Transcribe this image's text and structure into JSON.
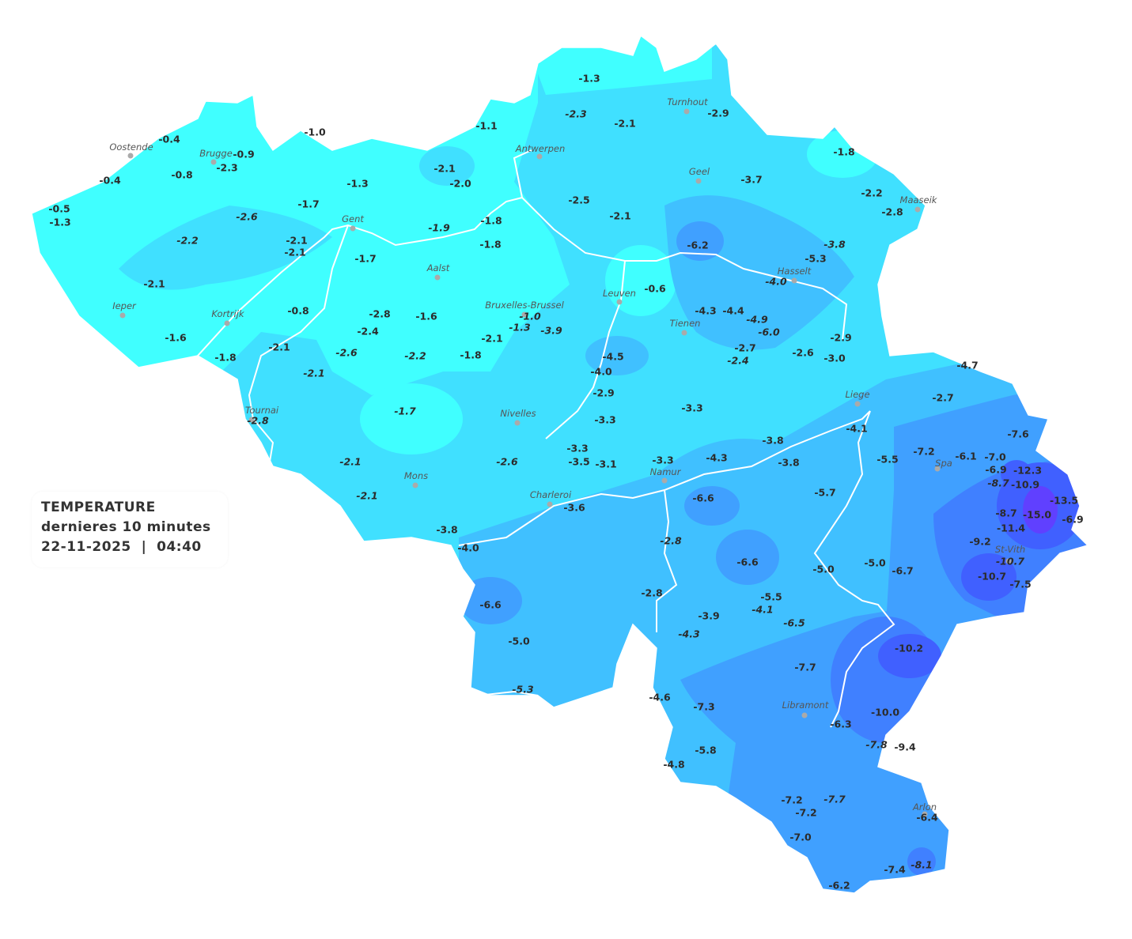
{
  "legend": {
    "title": "TEMPERATURE",
    "subtitle": "dernieres 10 minutes",
    "datetime": "22-11-2025  |  04:40"
  },
  "colors": {
    "very_light": "#40ffff",
    "light": "#40e0ff",
    "medium": "#40c0ff",
    "medium_dark": "#40a0ff",
    "dark": "#4080ff",
    "darker": "#4060ff",
    "darkest": "#6040ff",
    "boundary": "#ffffff",
    "text": "#2b2b2b"
  },
  "cities": [
    "Oostende",
    "Brugge",
    "Antwerpen",
    "Turnhout",
    "Geel",
    "Maaseik",
    "Gent",
    "Aalst",
    "Hasselt",
    "Leuven",
    "Bruxelles-Brussel",
    "Ieper",
    "Kortrijk",
    "Tienen",
    "Liege",
    "Tournai",
    "Nivelles",
    "Spa",
    "Namur",
    "Mons",
    "Charleroi",
    "St-Vith",
    "Libramont",
    "Arlon"
  ],
  "stations": [
    "-1.3",
    "-2.3",
    "-2.1",
    "-2.9",
    "-1.1",
    "-1.0",
    "-0.4",
    "-0.9",
    "-2.3",
    "-0.8",
    "-0.4",
    "-2.1",
    "-2.0",
    "-1.3",
    "-1.8",
    "-3.7",
    "-2.2",
    "-2.8",
    "-0.5",
    "-1.3",
    "-1.7",
    "-2.6",
    "-2.5",
    "-2.1",
    "-1.8",
    "-1.9",
    "-1.8",
    "-2.2",
    "-2.1",
    "-2.1",
    "-1.7",
    "-6.2",
    "-3.8",
    "-5.3",
    "-4.0",
    "-2.1",
    "-0.6",
    "-0.8",
    "-2.8",
    "-1.6",
    "-1.0",
    "-1.3",
    "-3.9",
    "-4.3",
    "-4.4",
    "-4.9",
    "-6.0",
    "-2.4",
    "-1.6",
    "-2.1",
    "-2.9",
    "-2.1",
    "-2.6",
    "-2.2",
    "-1.8",
    "-4.5",
    "-2.7",
    "-2.4",
    "-2.6",
    "-3.0",
    "-1.8",
    "-4.0",
    "-2.1",
    "-4.7",
    "-2.9",
    "-2.7",
    "-1.7",
    "-3.3",
    "-3.3",
    "-2.8",
    "-4.1",
    "-7.6",
    "-3.8",
    "-3.3",
    "-5.5",
    "-7.2",
    "-6.1",
    "-7.0",
    "-3.5",
    "-3.1",
    "-3.3",
    "-4.3",
    "-3.8",
    "-2.1",
    "-2.6",
    "-6.9",
    "-12.3",
    "-8.7",
    "-10.9",
    "-2.1",
    "-6.6",
    "-5.7",
    "-13.5",
    "-15.0",
    "-6.9",
    "-3.6",
    "-8.7",
    "-11.4",
    "-3.8",
    "-9.2",
    "-2.8",
    "-4.0",
    "-10.7",
    "-6.6",
    "-5.0",
    "-6.7",
    "-5.0",
    "-10.7",
    "-7.5",
    "-2.8",
    "-5.5",
    "-4.1",
    "-6.6",
    "-3.9",
    "-6.5",
    "-4.3",
    "-5.0",
    "-10.2",
    "-7.7",
    "-5.3",
    "-4.6",
    "-7.3",
    "-10.0",
    "-6.3",
    "-7.8",
    "-9.4",
    "-5.8",
    "-4.8",
    "-7.7",
    "-7.2",
    "-7.2",
    "-6.4",
    "-7.0",
    "-7.4",
    "-8.1",
    "-6.2"
  ]
}
